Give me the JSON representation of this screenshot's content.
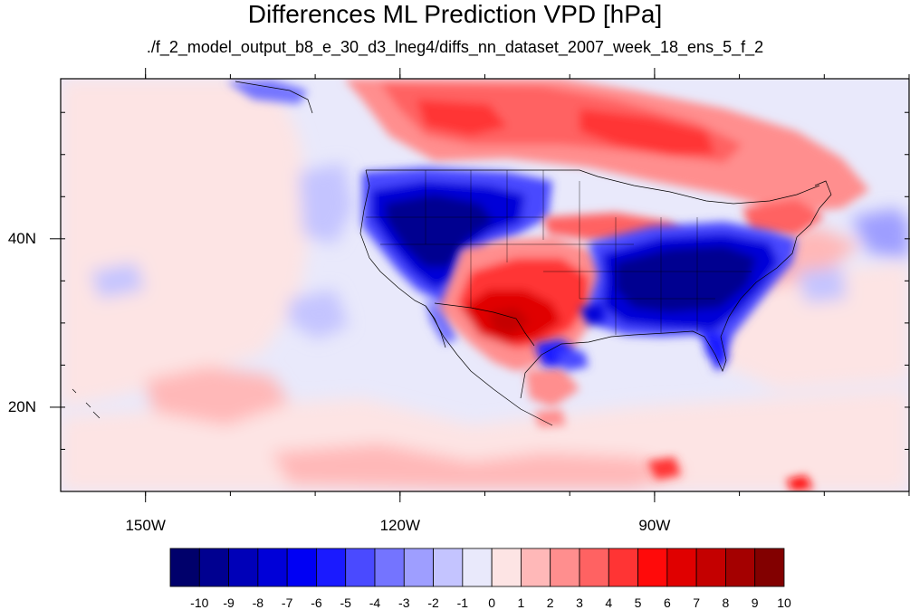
{
  "title": "Differences ML Prediction VPD [hPa]",
  "subtitle": "./f_2_model_output_b8_e_30_d3_lneg4/diffs_nn_dataset_2007_week_18_ens_5_f_2",
  "map": {
    "lon_range": [
      -160,
      -60
    ],
    "lat_range": [
      10,
      59
    ],
    "lon_ticks": [
      {
        "value": -150,
        "label": "150W"
      },
      {
        "value": -120,
        "label": "120W"
      },
      {
        "value": -90,
        "label": "90W"
      }
    ],
    "lat_ticks": [
      {
        "value": 40,
        "label": "40N"
      },
      {
        "value": 20,
        "label": "20N"
      }
    ],
    "background_color": "#e9e9fb"
  },
  "colorbar": {
    "labels": [
      "-10",
      "-9",
      "-8",
      "-7",
      "-6",
      "-5",
      "-4",
      "-3",
      "-2",
      "-1",
      "0",
      "1",
      "2",
      "3",
      "4",
      "5",
      "6",
      "7",
      "8",
      "9",
      "10"
    ],
    "colors": [
      "#00006b",
      "#000090",
      "#0000b8",
      "#0000d8",
      "#0000f4",
      "#1a1aff",
      "#4a4aff",
      "#7474ff",
      "#9e9eff",
      "#c4c4ff",
      "#e9e9fb",
      "#fde4e4",
      "#ffb8b8",
      "#ff8e8e",
      "#ff6262",
      "#ff3434",
      "#ff0a0a",
      "#e00000",
      "#c40000",
      "#a40000",
      "#820000"
    ]
  },
  "chart_data": {
    "type": "heatmap",
    "title": "Differences ML Prediction VPD [hPa]",
    "subtitle": "./f_2_model_output_b8_e_30_d3_lneg4/diffs_nn_dataset_2007_week_18_ens_5_f_2",
    "x_ticks": [
      "150W",
      "120W",
      "90W"
    ],
    "y_ticks": [
      "40N",
      "20N"
    ],
    "value_range": [
      -10,
      10
    ],
    "regions": [
      {
        "lon": -115,
        "lat": 40,
        "value": -9
      },
      {
        "lon": -85,
        "lat": 35,
        "value": -9
      },
      {
        "lon": -104,
        "lat": 32,
        "value": 6
      },
      {
        "lon": -98,
        "lat": 54,
        "value": 5
      },
      {
        "lon": -85,
        "lat": 51,
        "value": 6
      },
      {
        "lon": -72,
        "lat": 43,
        "value": 4
      },
      {
        "lon": -150,
        "lat": 47,
        "value": -1
      },
      {
        "lon": -140,
        "lat": 20,
        "value": 1
      },
      {
        "lon": -68,
        "lat": 38,
        "value": -2
      },
      {
        "lon": -80,
        "lat": 15,
        "value": 2
      }
    ]
  }
}
